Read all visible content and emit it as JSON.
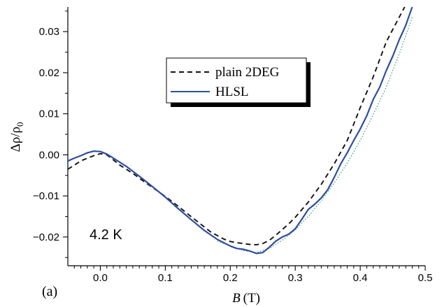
{
  "chart_data": {
    "type": "line",
    "title": "",
    "xlabel": "B (T)",
    "xlabel_var": "B",
    "xlabel_unit": "(T)",
    "ylabel": "Δρ/ρ0",
    "ylabel_main": "Δρ/ρ",
    "ylabel_sub": "0",
    "xlim": [
      -0.05,
      0.5
    ],
    "ylim": [
      -0.027,
      0.036
    ],
    "xticks": [
      0.0,
      0.1,
      0.2,
      0.3,
      0.4,
      0.5
    ],
    "xtick_labels": [
      "0.0",
      "0.1",
      "0.2",
      "0.3",
      "0.4",
      "0.5"
    ],
    "yticks": [
      -0.02,
      -0.01,
      0.0,
      0.01,
      0.02,
      0.03
    ],
    "ytick_labels": [
      "−0.02",
      "−0.01",
      "0.00",
      "0.01",
      "0.02",
      "0.03"
    ],
    "grid": false,
    "legend_position": "upper-center",
    "annotations": [
      "4.2 K",
      "(a)"
    ],
    "series": [
      {
        "name": "plain 2DEG",
        "style": "dashed",
        "color": "#111111",
        "x": [
          -0.05,
          -0.04,
          -0.03,
          -0.02,
          -0.01,
          0.0,
          0.01,
          0.02,
          0.03,
          0.05,
          0.07,
          0.09,
          0.11,
          0.13,
          0.15,
          0.17,
          0.19,
          0.2,
          0.21,
          0.22,
          0.23,
          0.24,
          0.25,
          0.26,
          0.27,
          0.28,
          0.29,
          0.3,
          0.32,
          0.34,
          0.36,
          0.38,
          0.4,
          0.42,
          0.44,
          0.45,
          0.46,
          0.47
        ],
        "y": [
          -0.0035,
          -0.0025,
          -0.0015,
          -0.0008,
          -0.0002,
          0.0003,
          0.0,
          -0.0012,
          -0.0025,
          -0.0045,
          -0.0068,
          -0.009,
          -0.0113,
          -0.0138,
          -0.0163,
          -0.0188,
          -0.0205,
          -0.0211,
          -0.0214,
          -0.0216,
          -0.0218,
          -0.0219,
          -0.0216,
          -0.0208,
          -0.0196,
          -0.0182,
          -0.0168,
          -0.0152,
          -0.0115,
          -0.0072,
          -0.0022,
          0.0035,
          0.0115,
          0.019,
          0.0275,
          0.0305,
          0.0335,
          0.0365
        ]
      },
      {
        "name": "HLSL",
        "style": "solid",
        "color": "#2f4e9e",
        "x": [
          -0.05,
          -0.04,
          -0.03,
          -0.02,
          -0.01,
          0.0,
          0.01,
          0.02,
          0.04,
          0.06,
          0.08,
          0.1,
          0.12,
          0.14,
          0.16,
          0.18,
          0.2,
          0.21,
          0.22,
          0.23,
          0.24,
          0.25,
          0.26,
          0.27,
          0.28,
          0.29,
          0.3,
          0.31,
          0.32,
          0.33,
          0.34,
          0.35,
          0.36,
          0.37,
          0.38,
          0.39,
          0.4,
          0.41,
          0.42,
          0.43,
          0.44,
          0.45,
          0.46,
          0.47,
          0.48
        ],
        "y": [
          -0.0015,
          -0.0008,
          -0.0002,
          0.0005,
          0.0009,
          0.0008,
          0.0002,
          -0.0008,
          -0.0028,
          -0.0052,
          -0.0077,
          -0.0103,
          -0.0131,
          -0.0158,
          -0.0184,
          -0.0206,
          -0.0222,
          -0.0228,
          -0.023,
          -0.0234,
          -0.024,
          -0.0238,
          -0.0225,
          -0.021,
          -0.02,
          -0.0193,
          -0.018,
          -0.0157,
          -0.0133,
          -0.012,
          -0.0105,
          -0.0085,
          -0.0055,
          -0.0022,
          0.0005,
          0.0035,
          0.0063,
          0.0095,
          0.0135,
          0.0165,
          0.0205,
          0.024,
          0.028,
          0.0315,
          0.036
        ]
      },
      {
        "name": "",
        "style": "dotted",
        "color": "#2e9e6e",
        "x": [
          0.18,
          0.2,
          0.22,
          0.24,
          0.26,
          0.28,
          0.3,
          0.32,
          0.34,
          0.36,
          0.38,
          0.4,
          0.42,
          0.44,
          0.46,
          0.48
        ],
        "y": [
          -0.021,
          -0.0222,
          -0.0233,
          -0.0238,
          -0.0228,
          -0.0208,
          -0.0183,
          -0.015,
          -0.0112,
          -0.0068,
          -0.002,
          0.0035,
          0.0098,
          0.0165,
          0.0245,
          0.0335
        ]
      }
    ]
  }
}
